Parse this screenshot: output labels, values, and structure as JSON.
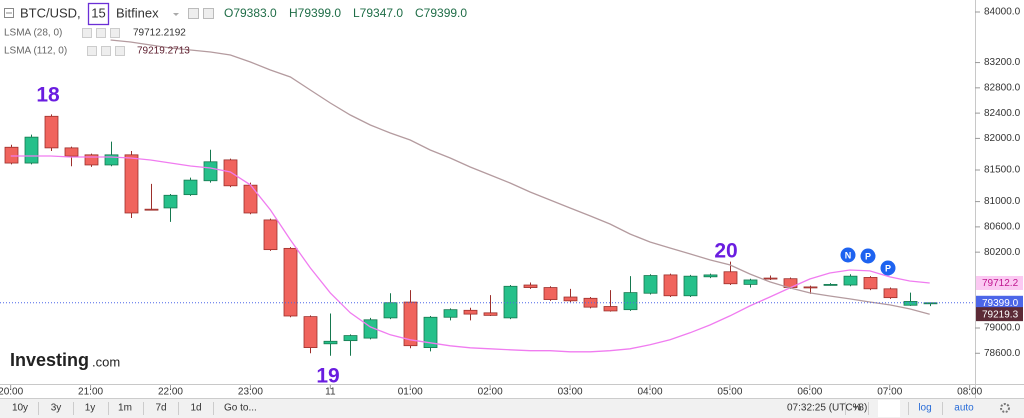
{
  "chart_data": {
    "type": "candlestick",
    "title": "BTC/USD,",
    "interval": "15",
    "exchange": "Bitfinex",
    "ohlc_labels": [
      "O79383.0",
      "H79399.0",
      "L79347.0",
      "C79399.0"
    ],
    "up_color": "#26c08a",
    "down_color": "#f0645d",
    "up_border": "#16784f",
    "down_border": "#9c2f2b",
    "x": [
      "20:00",
      "20:15",
      "20:30",
      "20:45",
      "21:00",
      "21:15",
      "21:30",
      "21:45",
      "22:00",
      "22:15",
      "22:30",
      "22:45",
      "23:00",
      "23:15",
      "23:30",
      "23:45",
      "00:00",
      "00:15",
      "00:30",
      "00:45",
      "01:00",
      "01:15",
      "01:30",
      "01:45",
      "02:00",
      "02:15",
      "02:30",
      "02:45",
      "03:00",
      "03:15",
      "03:30",
      "03:45",
      "04:00",
      "04:15",
      "04:30",
      "04:45",
      "05:00",
      "05:15",
      "05:30",
      "05:45",
      "06:00",
      "06:15",
      "06:30",
      "06:45",
      "07:00",
      "07:15",
      "07:30"
    ],
    "open": [
      81860,
      81610,
      82350,
      81850,
      81740,
      81580,
      81740,
      80880,
      80900,
      81110,
      81330,
      81660,
      81260,
      80710,
      80260,
      79180,
      78750,
      78800,
      78840,
      79160,
      79410,
      78690,
      79170,
      79280,
      79240,
      79160,
      79680,
      79640,
      79490,
      79470,
      79340,
      79290,
      79550,
      79840,
      79510,
      79810,
      79890,
      79690,
      79790,
      79780,
      79650,
      79680,
      79680,
      79800,
      79620,
      79360,
      79383
    ],
    "high": [
      81900,
      82060,
      82380,
      81870,
      81760,
      81950,
      81800,
      81280,
      81120,
      81380,
      81820,
      81680,
      81300,
      80730,
      80280,
      79200,
      79230,
      78900,
      79160,
      79550,
      79600,
      79190,
      79310,
      79320,
      79520,
      79680,
      79720,
      79660,
      79620,
      79490,
      79600,
      79820,
      79850,
      79860,
      79840,
      79860,
      80050,
      79780,
      79830,
      79800,
      79670,
      79710,
      79850,
      79820,
      79640,
      79560,
      79399
    ],
    "low": [
      81590,
      81590,
      81800,
      81560,
      81550,
      81560,
      80740,
      80860,
      80680,
      81090,
      81300,
      81230,
      80800,
      80220,
      79170,
      78600,
      78560,
      78560,
      78820,
      79140,
      78680,
      78630,
      79120,
      79120,
      79190,
      79140,
      79620,
      79430,
      79410,
      79310,
      79260,
      79270,
      79530,
      79490,
      79490,
      79790,
      79680,
      79640,
      79760,
      79620,
      79540,
      79670,
      79660,
      79600,
      79460,
      79350,
      79347
    ],
    "close": [
      81610,
      82020,
      81850,
      81720,
      81580,
      81740,
      80820,
      80870,
      81100,
      81340,
      81630,
      81250,
      80820,
      80240,
      79190,
      78690,
      78790,
      78880,
      79130,
      79400,
      78720,
      79170,
      79290,
      79220,
      79200,
      79660,
      79640,
      79450,
      79430,
      79330,
      79270,
      79560,
      79830,
      79510,
      79820,
      79840,
      79700,
      79760,
      79780,
      79640,
      79640,
      79690,
      79820,
      79620,
      79480,
      79420,
      79399
    ],
    "series": [
      {
        "name": "LSMA (28, 0)",
        "value_label": "79712.2192",
        "color": "#f07cf0",
        "values": [
          81722,
          81722,
          81722,
          81706,
          81706,
          81706,
          81690,
          81659,
          81611,
          81564,
          81532,
          81469,
          81264,
          80868,
          80394,
          79951,
          79556,
          79240,
          79018,
          78892,
          78813,
          78765,
          78718,
          78687,
          78671,
          78655,
          78640,
          78640,
          78624,
          78624,
          78640,
          78671,
          78734,
          78813,
          78924,
          79048,
          79191,
          79349,
          79491,
          79634,
          79776,
          79871,
          79918,
          79903,
          79808,
          79744,
          79712
        ]
      },
      {
        "name": "LSMA (112, 0)",
        "value_label": "79219.2713",
        "color": "#b49b9f",
        "values": [
          null,
          null,
          null,
          null,
          null,
          83557,
          83525,
          83478,
          83430,
          83399,
          83367,
          83320,
          83209,
          83083,
          82972,
          82766,
          82560,
          82370,
          82212,
          82085,
          81975,
          81816,
          81690,
          81548,
          81421,
          81295,
          81152,
          81026,
          80899,
          80773,
          80646,
          80488,
          80361,
          80266,
          80172,
          80077,
          79998,
          79855,
          79729,
          79634,
          79555,
          79507,
          79460,
          79412,
          79365,
          79302,
          79219
        ]
      }
    ],
    "ylim": [
      78098,
      84190
    ],
    "yticks": [
      {
        "value": 84000,
        "label": "84000.0"
      },
      {
        "value": 83200,
        "label": "83200.0"
      },
      {
        "value": 82800,
        "label": "82800.0"
      },
      {
        "value": 82400,
        "label": "82400.0"
      },
      {
        "value": 82000,
        "label": "82000.0"
      },
      {
        "value": 81500,
        "label": "81500.0"
      },
      {
        "value": 81000,
        "label": "81000.0"
      },
      {
        "value": 80600,
        "label": "80600.0"
      },
      {
        "value": 80200,
        "label": "80200.0"
      },
      {
        "value": 79000,
        "label": "79000.0"
      },
      {
        "value": 78600,
        "label": "78600.0"
      }
    ],
    "xlim": [
      "19:52",
      "08:04"
    ],
    "xticks": [
      {
        "value": "20:00",
        "label": "20:00"
      },
      {
        "value": "21:00",
        "label": "21:00"
      },
      {
        "value": "22:00",
        "label": "22:00"
      },
      {
        "value": "23:00",
        "label": "23:00"
      },
      {
        "value": "00:00",
        "label": "11"
      },
      {
        "value": "01:00",
        "label": "01:00"
      },
      {
        "value": "02:00",
        "label": "02:00"
      },
      {
        "value": "03:00",
        "label": "03:00"
      },
      {
        "value": "04:00",
        "label": "04:00"
      },
      {
        "value": "05:00",
        "label": "05:00"
      },
      {
        "value": "06:00",
        "label": "06:00"
      },
      {
        "value": "07:00",
        "label": "07:00"
      },
      {
        "value": "08:00",
        "label": "08:00"
      }
    ],
    "price_tags": [
      {
        "value": 79712.2,
        "label": "79712.2",
        "bg": "#fbc9f2",
        "fg": "#c0168f"
      },
      {
        "value": 79399.0,
        "label": "79399.0",
        "bg": "#4c66e8",
        "fg": "#ffffff"
      },
      {
        "value": 79219.3,
        "label": "79219.3",
        "bg": "#5c2a36",
        "fg": "#ffffff"
      }
    ],
    "grid": false,
    "annotations": [
      "18",
      "19",
      "20"
    ],
    "event_markers": [
      "N",
      "P",
      "P"
    ]
  },
  "logo": "Investing",
  "logo_suffix": ".com",
  "toolbar": {
    "ranges": [
      "10y",
      "3y",
      "1y",
      "1m",
      "7d",
      "1d"
    ],
    "goto": "Go to...",
    "clock": "07:32:25 (UTC+8)",
    "percent": "%",
    "log": "log",
    "auto": "auto"
  }
}
